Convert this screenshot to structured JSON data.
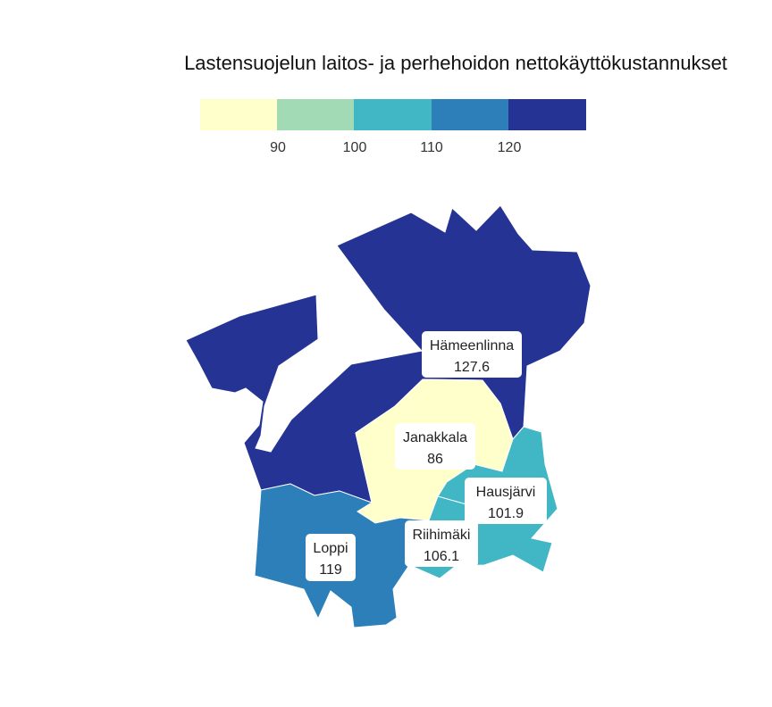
{
  "map": {
    "title": "Lastensuojelun laitos- ja perhehoidon nettokäyttökustannukset",
    "legend": {
      "colors": [
        "#ffffcc",
        "#a1dab4",
        "#41b6c4",
        "#2c7fb8",
        "#253494"
      ],
      "ticks": [
        "90",
        "100",
        "110",
        "120"
      ]
    },
    "regions": [
      {
        "name": "Hämeenlinna",
        "value": "127.6",
        "color": "#253494"
      },
      {
        "name": "Janakkala",
        "value": "86",
        "color": "#ffffcc"
      },
      {
        "name": "Hausjärvi",
        "value": "101.9",
        "color": "#41b6c4"
      },
      {
        "name": "Riihimäki",
        "value": "106.1",
        "color": "#41b6c4"
      },
      {
        "name": "Loppi",
        "value": "119",
        "color": "#2c7fb8"
      }
    ]
  }
}
